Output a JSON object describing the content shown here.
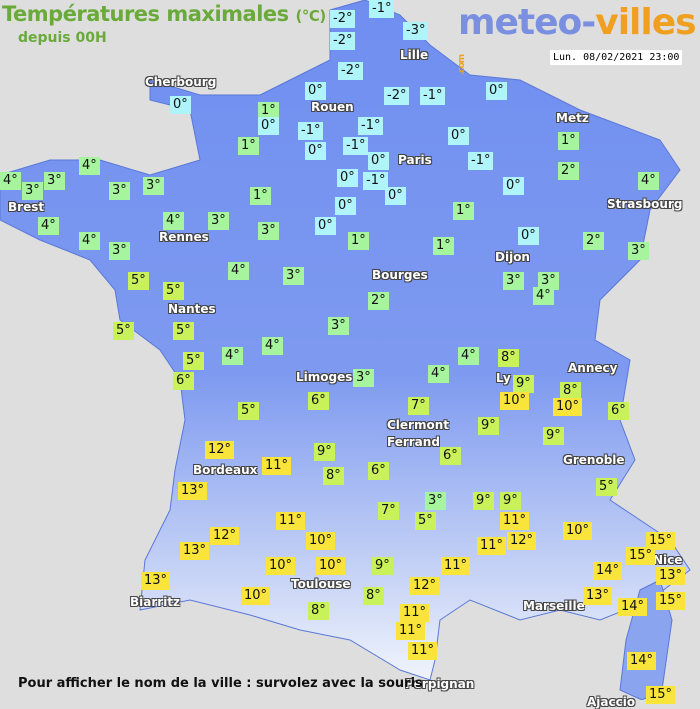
{
  "header": {
    "title": "Températures maximales",
    "unit": "(°C)",
    "subtitle": "depuis 00H",
    "date": "Lun. 08/02/2021 23:00"
  },
  "logo": {
    "part1": "meteo-",
    "part2": "villes",
    "suffix": ".com"
  },
  "colors": {
    "cold": "#aef4f8",
    "cool": "#a6f49e",
    "mild": "#c9f25a",
    "warm": "#f8e43a",
    "land": "#6f8ef0",
    "background": "#dedede"
  },
  "cities": [
    "Cherbourg",
    "Lille",
    "Rouen",
    "Metz",
    "Paris",
    "Brest",
    "Strasbourg",
    "Rennes",
    "Dijon",
    "Bourges",
    "Nantes",
    "Limoges",
    "Annecy",
    "Ly",
    "Clermont",
    "Ferrand",
    "Grenoble",
    "Bordeaux",
    "Nice",
    "Toulouse",
    "Biarritz",
    "Marseille",
    "Perpignan",
    "Ajaccio"
  ],
  "temperatures": [
    "-2°",
    "-1°",
    "-2°",
    "-3°",
    "-2°",
    "0°",
    "-2°",
    "-1°",
    "0°",
    "0°",
    "1°",
    "0°",
    "-1°",
    "-1°",
    "0°",
    "-1°",
    "1°",
    "0°",
    "0°",
    "-1°",
    "4°",
    "3°",
    "3°",
    "4°",
    "3°",
    "3°",
    "1°",
    "0°",
    "-1°",
    "0°",
    "0°",
    "2°",
    "1°",
    "4°",
    "4°",
    "4°",
    "3°",
    "4°",
    "3°",
    "3°",
    "0°",
    "0°",
    "1°",
    "1°",
    "1°",
    "0°",
    "2°",
    "3°",
    "3°",
    "3°",
    "4°",
    "4°",
    "3°",
    "2°",
    "5°",
    "5°",
    "5°",
    "5°",
    "3°",
    "5°",
    "4°",
    "4°",
    "6°",
    "3°",
    "4°",
    "4°",
    "8°",
    "9°",
    "8°",
    "10°",
    "10°",
    "6°",
    "5°",
    "6°",
    "7°",
    "9°",
    "9°",
    "12°",
    "11°",
    "9°",
    "6°",
    "6°",
    "8°",
    "13°",
    "7°",
    "3°",
    "5°",
    "9°",
    "9°",
    "11°",
    "12°",
    "11°",
    "10°",
    "5°",
    "12°",
    "11°",
    "10°",
    "13°",
    "10°",
    "10°",
    "9°",
    "11°",
    "12°",
    "13°",
    "10°",
    "8°",
    "8°",
    "11°",
    "11°",
    "11°",
    "13°",
    "14°",
    "14°",
    "15°",
    "15°",
    "13°",
    "15°",
    "14°",
    "15°"
  ],
  "footer": "Pour afficher le nom de la ville : survolez avec la souris"
}
